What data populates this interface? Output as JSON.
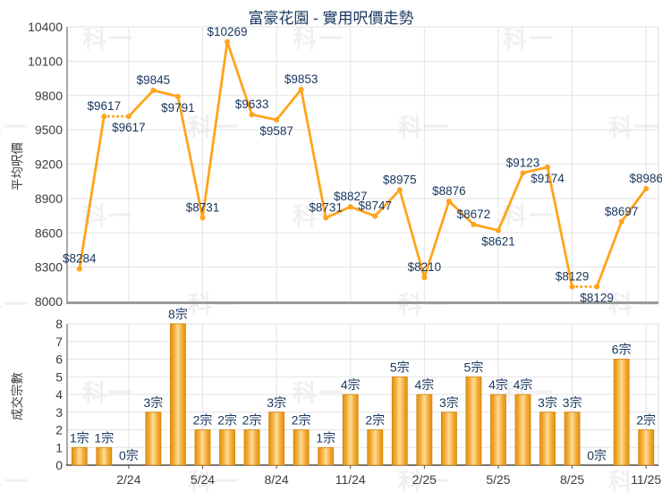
{
  "title": "富豪花園 - 實用呎價走勢",
  "watermark": "科一",
  "chart_data": [
    {
      "type": "line",
      "title": "富豪花園 - 實用呎價走勢",
      "ylabel": "平均呎價",
      "ylim": [
        8000,
        10400
      ],
      "ytick_step": 300,
      "yticks": [
        8000,
        8300,
        8600,
        8900,
        9200,
        9500,
        9800,
        10100,
        10400
      ],
      "x_slot_count": 24,
      "xtick_labels": [
        "2/24",
        "5/24",
        "8/24",
        "11/24",
        "2/25",
        "5/25",
        "8/25",
        "11/25"
      ],
      "xtick_slots": [
        3,
        6,
        9,
        12,
        15,
        18,
        21,
        24
      ],
      "values": [
        8284,
        9617,
        9617,
        9845,
        9791,
        8731,
        10269,
        9633,
        9587,
        9853,
        8731,
        8827,
        8747,
        8975,
        8210,
        8876,
        8672,
        8621,
        9123,
        9174,
        8129,
        8129,
        8697,
        8986
      ],
      "point_labels": [
        "$8284",
        "$9617",
        "$9617",
        "$9845",
        "$9791",
        "$8731",
        "$10269",
        "$9633",
        "$9587",
        "$9853",
        "$8731",
        "$8827",
        "$8747",
        "$8975",
        "$8210",
        "$8876",
        "$8672",
        "$8621",
        "$9123",
        "$9174",
        "$8129",
        "$8129",
        "$8697",
        "$8986"
      ],
      "labels_below": [
        3,
        5,
        9,
        18,
        20,
        22
      ],
      "dotted_segments": [
        [
          2,
          3
        ],
        [
          21,
          22
        ]
      ],
      "line_color": "#FFA41C",
      "label_color": "#17365D",
      "grid": true,
      "legend": false
    },
    {
      "type": "bar",
      "ylabel": "成交宗數",
      "ylim": [
        0,
        8
      ],
      "ytick_step": 1,
      "yticks": [
        0,
        1,
        2,
        3,
        4,
        5,
        6,
        7,
        8
      ],
      "x_slot_count": 24,
      "xtick_labels": [
        "2/24",
        "5/24",
        "8/24",
        "11/24",
        "2/25",
        "5/25",
        "8/25",
        "11/25"
      ],
      "xtick_slots": [
        3,
        6,
        9,
        12,
        15,
        18,
        21,
        24
      ],
      "values": [
        1,
        1,
        0,
        3,
        8,
        2,
        2,
        2,
        3,
        2,
        1,
        4,
        2,
        5,
        4,
        3,
        5,
        4,
        4,
        3,
        3,
        0,
        6,
        2
      ],
      "bar_labels": [
        "1宗",
        "1宗",
        "0宗",
        "3宗",
        "8宗",
        "2宗",
        "2宗",
        "2宗",
        "3宗",
        "2宗",
        "1宗",
        "4宗",
        "2宗",
        "5宗",
        "4宗",
        "3宗",
        "5宗",
        "4宗",
        "4宗",
        "3宗",
        "3宗",
        "0宗",
        "6宗",
        "2宗"
      ],
      "bar_edge_color": "#E6920E",
      "bar_center_color": "#FFDC96",
      "bar_stroke_color": "#CE810B",
      "label_color": "#17365D",
      "grid": true,
      "legend": false
    }
  ]
}
